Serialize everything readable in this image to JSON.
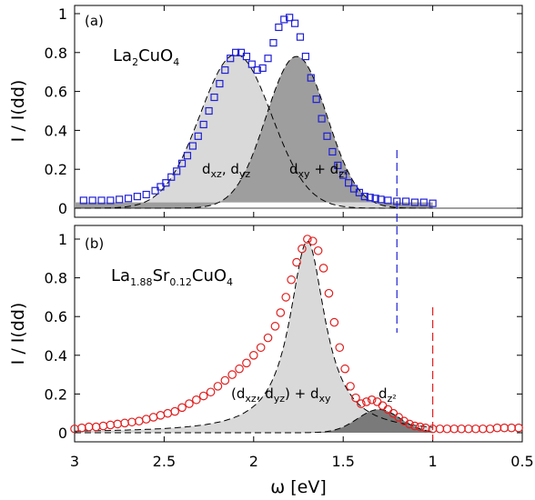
{
  "chart_data": [
    {
      "panel": "top",
      "type": "scatter",
      "panel_label": "(a)",
      "compound": {
        "base": "La",
        "sub1": "2",
        "rest": "CuO",
        "sub2": "4"
      },
      "xlabel": "ω [eV]",
      "ylabel": "I / I(dd)",
      "xlim": [
        3,
        0.5
      ],
      "ylim": [
        0,
        1.05
      ],
      "x_reversed": true,
      "yticks": [
        "0",
        "0.2",
        "0.4",
        "0.6",
        "0.8",
        "1"
      ],
      "marker": "open-square",
      "marker_color": "#1f1fd6",
      "data": {
        "x": [
          2.95,
          2.9,
          2.85,
          2.8,
          2.75,
          2.7,
          2.65,
          2.6,
          2.55,
          2.52,
          2.49,
          2.46,
          2.43,
          2.4,
          2.37,
          2.34,
          2.31,
          2.28,
          2.25,
          2.22,
          2.19,
          2.16,
          2.13,
          2.1,
          2.07,
          2.04,
          2.01,
          1.98,
          1.95,
          1.92,
          1.89,
          1.86,
          1.83,
          1.8,
          1.77,
          1.74,
          1.71,
          1.68,
          1.65,
          1.62,
          1.59,
          1.56,
          1.53,
          1.5,
          1.47,
          1.44,
          1.41,
          1.38,
          1.35,
          1.32,
          1.29,
          1.25,
          1.2,
          1.15,
          1.1,
          1.05,
          1.0
        ],
        "y": [
          0.04,
          0.04,
          0.04,
          0.04,
          0.045,
          0.05,
          0.06,
          0.07,
          0.09,
          0.11,
          0.13,
          0.16,
          0.19,
          0.23,
          0.27,
          0.32,
          0.37,
          0.43,
          0.5,
          0.57,
          0.64,
          0.71,
          0.77,
          0.8,
          0.8,
          0.78,
          0.74,
          0.71,
          0.72,
          0.77,
          0.85,
          0.93,
          0.97,
          0.98,
          0.95,
          0.88,
          0.78,
          0.67,
          0.56,
          0.46,
          0.37,
          0.29,
          0.22,
          0.17,
          0.13,
          0.1,
          0.08,
          0.06,
          0.055,
          0.05,
          0.045,
          0.04,
          0.035,
          0.035,
          0.03,
          0.03,
          0.025
        ]
      },
      "components": [
        {
          "label": {
            "d1": "d",
            "s1": "xz",
            "mid": ", d",
            "s2": "yz"
          },
          "center": 2.1,
          "amplitude": 0.79,
          "width": 0.2,
          "fill": "#d9d9d9"
        },
        {
          "label": {
            "d1": "d",
            "s1": "xy",
            "mid": " + d",
            "s2": "z²"
          },
          "center": 1.76,
          "amplitude": 0.78,
          "width": 0.17,
          "fill": "#9e9e9e"
        }
      ],
      "baseline": 0.03,
      "marker_line": {
        "x": 1.2,
        "color": "#1f1fd6"
      }
    },
    {
      "panel": "bottom",
      "type": "scatter",
      "panel_label": "(b)",
      "compound": {
        "base": "La",
        "sub1": "1.88",
        "mid": "Sr",
        "sub2": "0.12",
        "rest": "CuO",
        "sub3": "4"
      },
      "xlabel": "ω [eV]",
      "ylabel": "I / I(dd)",
      "xlim": [
        3,
        0.5
      ],
      "ylim": [
        0,
        1.05
      ],
      "x_reversed": true,
      "xticks": [
        "3",
        "2.5",
        "2",
        "1.5",
        "1",
        "0.5"
      ],
      "yticks": [
        "0",
        "0.2",
        "0.4",
        "0.6",
        "0.8",
        "1"
      ],
      "marker": "open-circle",
      "marker_color": "#e02020",
      "data": {
        "x": [
          3.0,
          2.96,
          2.92,
          2.88,
          2.84,
          2.8,
          2.76,
          2.72,
          2.68,
          2.64,
          2.6,
          2.56,
          2.52,
          2.48,
          2.44,
          2.4,
          2.36,
          2.32,
          2.28,
          2.24,
          2.2,
          2.16,
          2.12,
          2.08,
          2.04,
          2.0,
          1.96,
          1.92,
          1.88,
          1.85,
          1.82,
          1.79,
          1.76,
          1.73,
          1.7,
          1.67,
          1.64,
          1.61,
          1.58,
          1.55,
          1.52,
          1.49,
          1.46,
          1.43,
          1.4,
          1.37,
          1.34,
          1.31,
          1.28,
          1.25,
          1.22,
          1.19,
          1.16,
          1.13,
          1.1,
          1.07,
          1.04,
          1.0,
          0.96,
          0.92,
          0.88,
          0.84,
          0.8,
          0.76,
          0.72,
          0.68,
          0.64,
          0.6,
          0.56,
          0.52
        ],
        "y": [
          0.02,
          0.025,
          0.03,
          0.03,
          0.035,
          0.04,
          0.045,
          0.05,
          0.055,
          0.06,
          0.07,
          0.08,
          0.09,
          0.1,
          0.11,
          0.13,
          0.15,
          0.17,
          0.19,
          0.21,
          0.24,
          0.27,
          0.3,
          0.33,
          0.36,
          0.4,
          0.44,
          0.49,
          0.55,
          0.62,
          0.7,
          0.79,
          0.88,
          0.95,
          1.0,
          0.99,
          0.94,
          0.85,
          0.72,
          0.57,
          0.44,
          0.33,
          0.24,
          0.18,
          0.15,
          0.16,
          0.17,
          0.16,
          0.14,
          0.12,
          0.1,
          0.08,
          0.06,
          0.045,
          0.035,
          0.03,
          0.025,
          0.02,
          0.02,
          0.02,
          0.02,
          0.02,
          0.02,
          0.02,
          0.02,
          0.02,
          0.025,
          0.025,
          0.025,
          0.025
        ]
      },
      "components": [
        {
          "label": {
            "pre": "(d",
            "s1": "xz",
            "mid": ", d",
            "s2": "yz",
            "post": ") + d",
            "s3": "xy"
          },
          "center": 1.7,
          "amplitude": 0.99,
          "gamma": 0.12,
          "fill": "#d9d9d9"
        },
        {
          "label": {
            "d1": "d",
            "s1": "z²"
          },
          "center": 1.3,
          "amplitude": 0.12,
          "width": 0.12,
          "fill": "#7a7a7a"
        }
      ],
      "marker_line": {
        "x": 1.0,
        "color": "#e02020"
      }
    }
  ]
}
